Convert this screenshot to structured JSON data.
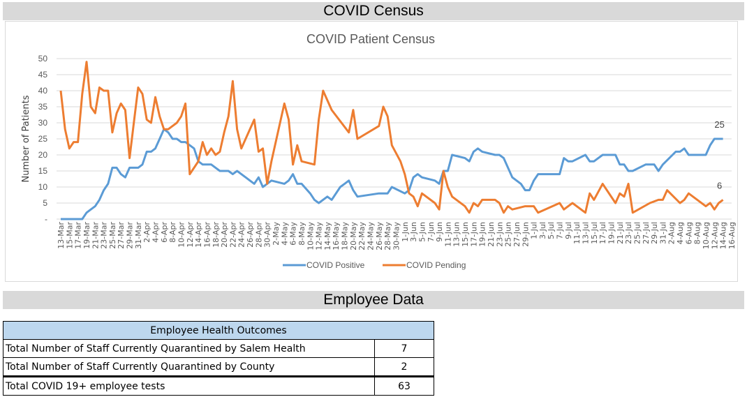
{
  "census_banner": "COVID Census",
  "employee_banner": "Employee Data",
  "colors": {
    "positive": "#5b9bd5",
    "pending": "#ed7d31",
    "banner": "#d9d9d9",
    "table_header": "#bdd7ee"
  },
  "chart_data": {
    "type": "line",
    "title": "COVID Patient Census",
    "ylabel": "Number of Patients",
    "xlabel": "",
    "ylim": [
      0,
      50
    ],
    "y_ticks": [
      "-",
      "5",
      "10",
      "15",
      "20",
      "25",
      "30",
      "35",
      "40",
      "45",
      "50"
    ],
    "x_range": [
      "13-Mar",
      "16-Aug"
    ],
    "x_ticks": [
      "13-Mar",
      "15-Mar",
      "17-Mar",
      "19-Mar",
      "21-Mar",
      "23-Mar",
      "25-Mar",
      "27-Mar",
      "29-Mar",
      "31-Mar",
      "2-Apr",
      "4-Apr",
      "6-Apr",
      "8-Apr",
      "10-Apr",
      "12-Apr",
      "14-Apr",
      "16-Apr",
      "18-Apr",
      "20-Apr",
      "22-Apr",
      "24-Apr",
      "26-Apr",
      "28-Apr",
      "30-Apr",
      "2-May",
      "4-May",
      "6-May",
      "8-May",
      "10-May",
      "12-May",
      "14-May",
      "16-May",
      "18-May",
      "20-May",
      "22-May",
      "24-May",
      "26-May",
      "28-May",
      "30-May",
      "1-Jun",
      "3-Jun",
      "5-Jun",
      "7-Jun",
      "9-Jun",
      "11-Jun",
      "13-Jun",
      "15-Jun",
      "17-Jun",
      "19-Jun",
      "21-Jun",
      "23-Jun",
      "25-Jun",
      "27-Jun",
      "29-Jun",
      "1-Jul",
      "3-Jul",
      "5-Jul",
      "7-Jul",
      "9-Jul",
      "11-Jul",
      "13-Jul",
      "15-Jul",
      "17-Jul",
      "19-Jul",
      "21-Jul",
      "23-Jul",
      "25-Jul",
      "27-Jul",
      "29-Jul",
      "31-Jul",
      "2-Aug",
      "4-Aug",
      "6-Aug",
      "8-Aug",
      "10-Aug",
      "12-Aug",
      "14-Aug",
      "16-Aug"
    ],
    "grid": true,
    "legend_position": "bottom",
    "series": [
      {
        "name": "COVID Positive",
        "color": "#5b9bd5",
        "last_label": "25",
        "points": [
          [
            "13-Mar",
            0
          ],
          [
            "18-Mar",
            0
          ],
          [
            "19-Mar",
            2
          ],
          [
            "20-Mar",
            3
          ],
          [
            "21-Mar",
            4
          ],
          [
            "22-Mar",
            6
          ],
          [
            "23-Mar",
            9
          ],
          [
            "24-Mar",
            11
          ],
          [
            "25-Mar",
            16
          ],
          [
            "26-Mar",
            16
          ],
          [
            "27-Mar",
            14
          ],
          [
            "28-Mar",
            13
          ],
          [
            "29-Mar",
            16
          ],
          [
            "31-Mar",
            16
          ],
          [
            "1-Apr",
            17
          ],
          [
            "2-Apr",
            21
          ],
          [
            "3-Apr",
            21
          ],
          [
            "4-Apr",
            22
          ],
          [
            "5-Apr",
            25
          ],
          [
            "6-Apr",
            28
          ],
          [
            "7-Apr",
            27
          ],
          [
            "8-Apr",
            25
          ],
          [
            "9-Apr",
            25
          ],
          [
            "10-Apr",
            24
          ],
          [
            "11-Apr",
            24
          ],
          [
            "12-Apr",
            23
          ],
          [
            "13-Apr",
            22
          ],
          [
            "14-Apr",
            18
          ],
          [
            "15-Apr",
            17
          ],
          [
            "17-Apr",
            17
          ],
          [
            "18-Apr",
            16
          ],
          [
            "19-Apr",
            15
          ],
          [
            "21-Apr",
            15
          ],
          [
            "22-Apr",
            14
          ],
          [
            "23-Apr",
            15
          ],
          [
            "24-Apr",
            14
          ],
          [
            "25-Apr",
            13
          ],
          [
            "26-Apr",
            12
          ],
          [
            "27-Apr",
            11
          ],
          [
            "28-Apr",
            13
          ],
          [
            "29-Apr",
            10
          ],
          [
            "30-Apr",
            11
          ],
          [
            "1-May",
            12
          ],
          [
            "4-May",
            11
          ],
          [
            "5-May",
            12
          ],
          [
            "6-May",
            14
          ],
          [
            "7-May",
            11
          ],
          [
            "8-May",
            11
          ],
          [
            "10-May",
            8
          ],
          [
            "11-May",
            6
          ],
          [
            "12-May",
            5
          ],
          [
            "14-May",
            7
          ],
          [
            "15-May",
            6
          ],
          [
            "17-May",
            10
          ],
          [
            "18-May",
            11
          ],
          [
            "19-May",
            12
          ],
          [
            "20-May",
            9
          ],
          [
            "21-May",
            7
          ],
          [
            "26-May",
            8
          ],
          [
            "28-May",
            8
          ],
          [
            "29-May",
            10
          ],
          [
            "1-Jun",
            8
          ],
          [
            "2-Jun",
            9
          ],
          [
            "3-Jun",
            13
          ],
          [
            "4-Jun",
            14
          ],
          [
            "5-Jun",
            13
          ],
          [
            "8-Jun",
            12
          ],
          [
            "9-Jun",
            11
          ],
          [
            "10-Jun",
            15
          ],
          [
            "11-Jun",
            15
          ],
          [
            "12-Jun",
            20
          ],
          [
            "15-Jun",
            19
          ],
          [
            "16-Jun",
            18
          ],
          [
            "17-Jun",
            21
          ],
          [
            "18-Jun",
            22
          ],
          [
            "19-Jun",
            21
          ],
          [
            "22-Jun",
            20
          ],
          [
            "23-Jun",
            20
          ],
          [
            "24-Jun",
            19
          ],
          [
            "26-Jun",
            13
          ],
          [
            "28-Jun",
            11
          ],
          [
            "29-Jun",
            9
          ],
          [
            "30-Jun",
            9
          ],
          [
            "1-Jul",
            12
          ],
          [
            "2-Jul",
            14
          ],
          [
            "7-Jul",
            14
          ],
          [
            "8-Jul",
            19
          ],
          [
            "9-Jul",
            18
          ],
          [
            "10-Jul",
            18
          ],
          [
            "13-Jul",
            20
          ],
          [
            "14-Jul",
            18
          ],
          [
            "15-Jul",
            18
          ],
          [
            "17-Jul",
            20
          ],
          [
            "20-Jul",
            20
          ],
          [
            "21-Jul",
            17
          ],
          [
            "22-Jul",
            17
          ],
          [
            "23-Jul",
            15
          ],
          [
            "24-Jul",
            15
          ],
          [
            "27-Jul",
            17
          ],
          [
            "29-Jul",
            17
          ],
          [
            "30-Jul",
            15
          ],
          [
            "31-Jul",
            17
          ],
          [
            "3-Aug",
            21
          ],
          [
            "4-Aug",
            21
          ],
          [
            "5-Aug",
            22
          ],
          [
            "6-Aug",
            20
          ],
          [
            "10-Aug",
            20
          ],
          [
            "11-Aug",
            23
          ],
          [
            "12-Aug",
            25
          ],
          [
            "14-Aug",
            25
          ]
        ]
      },
      {
        "name": "COVID Pending",
        "color": "#ed7d31",
        "last_label": "6",
        "points": [
          [
            "13-Mar",
            40
          ],
          [
            "14-Mar",
            28
          ],
          [
            "15-Mar",
            22
          ],
          [
            "16-Mar",
            24
          ],
          [
            "17-Mar",
            24
          ],
          [
            "18-Mar",
            39
          ],
          [
            "19-Mar",
            49
          ],
          [
            "20-Mar",
            35
          ],
          [
            "21-Mar",
            33
          ],
          [
            "22-Mar",
            41
          ],
          [
            "23-Mar",
            40
          ],
          [
            "24-Mar",
            40
          ],
          [
            "25-Mar",
            27
          ],
          [
            "26-Mar",
            33
          ],
          [
            "27-Mar",
            36
          ],
          [
            "28-Mar",
            34
          ],
          [
            "29-Mar",
            19
          ],
          [
            "30-Mar",
            30
          ],
          [
            "31-Mar",
            41
          ],
          [
            "1-Apr",
            39
          ],
          [
            "2-Apr",
            31
          ],
          [
            "3-Apr",
            30
          ],
          [
            "4-Apr",
            38
          ],
          [
            "5-Apr",
            32
          ],
          [
            "6-Apr",
            28
          ],
          [
            "7-Apr",
            28
          ],
          [
            "8-Apr",
            29
          ],
          [
            "9-Apr",
            30
          ],
          [
            "10-Apr",
            32
          ],
          [
            "11-Apr",
            36
          ],
          [
            "12-Apr",
            14
          ],
          [
            "13-Apr",
            16
          ],
          [
            "14-Apr",
            18
          ],
          [
            "15-Apr",
            24
          ],
          [
            "16-Apr",
            20
          ],
          [
            "17-Apr",
            22
          ],
          [
            "18-Apr",
            20
          ],
          [
            "19-Apr",
            21
          ],
          [
            "20-Apr",
            27
          ],
          [
            "21-Apr",
            32
          ],
          [
            "22-Apr",
            43
          ],
          [
            "23-Apr",
            28
          ],
          [
            "24-Apr",
            22
          ],
          [
            "27-Apr",
            31
          ],
          [
            "28-Apr",
            21
          ],
          [
            "29-Apr",
            22
          ],
          [
            "30-Apr",
            11
          ],
          [
            "1-May",
            18
          ],
          [
            "4-May",
            36
          ],
          [
            "5-May",
            31
          ],
          [
            "6-May",
            17
          ],
          [
            "7-May",
            23
          ],
          [
            "8-May",
            18
          ],
          [
            "11-May",
            17
          ],
          [
            "12-May",
            31
          ],
          [
            "13-May",
            40
          ],
          [
            "15-May",
            34
          ],
          [
            "19-May",
            27
          ],
          [
            "20-May",
            34
          ],
          [
            "21-May",
            25
          ],
          [
            "26-May",
            29
          ],
          [
            "27-May",
            35
          ],
          [
            "28-May",
            32
          ],
          [
            "29-May",
            23
          ],
          [
            "31-May",
            18
          ],
          [
            "1-Jun",
            14
          ],
          [
            "2-Jun",
            8
          ],
          [
            "3-Jun",
            7
          ],
          [
            "4-Jun",
            4
          ],
          [
            "5-Jun",
            8
          ],
          [
            "8-Jun",
            5
          ],
          [
            "9-Jun",
            3
          ],
          [
            "10-Jun",
            15
          ],
          [
            "11-Jun",
            10
          ],
          [
            "12-Jun",
            7
          ],
          [
            "15-Jun",
            4
          ],
          [
            "16-Jun",
            2
          ],
          [
            "17-Jun",
            5
          ],
          [
            "18-Jun",
            4
          ],
          [
            "19-Jun",
            6
          ],
          [
            "22-Jun",
            6
          ],
          [
            "23-Jun",
            5
          ],
          [
            "24-Jun",
            2
          ],
          [
            "25-Jun",
            4
          ],
          [
            "26-Jun",
            3
          ],
          [
            "29-Jun",
            4
          ],
          [
            "1-Jul",
            4
          ],
          [
            "2-Jul",
            2
          ],
          [
            "7-Jul",
            5
          ],
          [
            "8-Jul",
            3
          ],
          [
            "10-Jul",
            5
          ],
          [
            "13-Jul",
            2
          ],
          [
            "14-Jul",
            8
          ],
          [
            "15-Jul",
            6
          ],
          [
            "17-Jul",
            11
          ],
          [
            "20-Jul",
            5
          ],
          [
            "21-Jul",
            8
          ],
          [
            "22-Jul",
            7
          ],
          [
            "23-Jul",
            11
          ],
          [
            "24-Jul",
            2
          ],
          [
            "28-Jul",
            5
          ],
          [
            "30-Jul",
            6
          ],
          [
            "31-Jul",
            6
          ],
          [
            "1-Aug",
            9
          ],
          [
            "4-Aug",
            5
          ],
          [
            "5-Aug",
            6
          ],
          [
            "6-Aug",
            8
          ],
          [
            "10-Aug",
            4
          ],
          [
            "11-Aug",
            5
          ],
          [
            "12-Aug",
            3
          ],
          [
            "13-Aug",
            5
          ],
          [
            "14-Aug",
            6
          ]
        ]
      }
    ]
  },
  "table": {
    "header": "Employee Health Outcomes",
    "rows": [
      {
        "label": "Total Number of Staff Currently Quarantined by Salem Health",
        "value": "7"
      },
      {
        "label": "Total Number of Staff Currently Quarantined by County",
        "value": "2"
      },
      {
        "label": "Total COVID 19+ employee tests",
        "value": "63"
      }
    ]
  }
}
